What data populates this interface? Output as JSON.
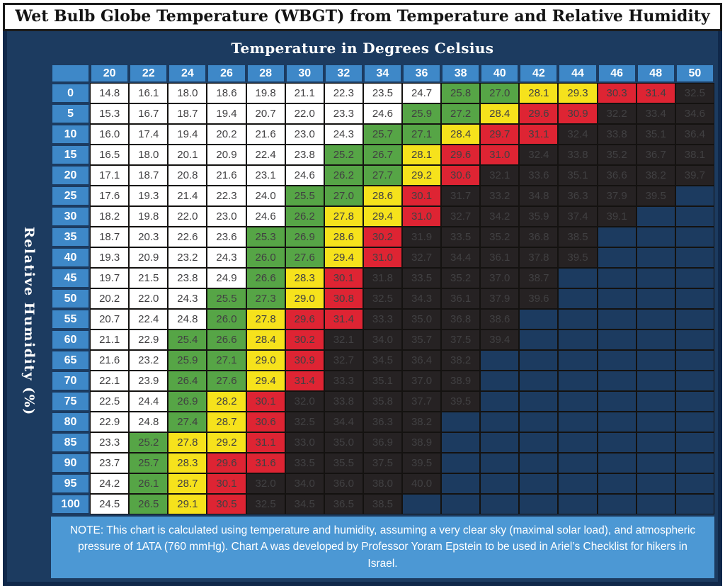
{
  "title": "Wet Bulb Globe Temperature (WBGT) from Temperature and Relative Humidity",
  "colors": {
    "panel_navy": "#1c3b60",
    "panel_border": "#10284a",
    "header_blue": "#3e88c8",
    "note_blue": "#4c98d4",
    "cell_white": "#ffffff",
    "cell_green": "#56a546",
    "cell_yellow": "#f6e21c",
    "cell_red": "#de2433",
    "cell_black": "#262223"
  },
  "chart_data": {
    "type": "heatmap",
    "title": "Wet Bulb Globe Temperature (WBGT) from Temperature and Relative Humidity",
    "x_axis_title": "Temperature in Degrees Celsius",
    "y_axis_title": "Relative Humidity (%)",
    "columns": [
      "20",
      "22",
      "24",
      "26",
      "28",
      "30",
      "32",
      "34",
      "36",
      "38",
      "40",
      "42",
      "44",
      "46",
      "48",
      "50"
    ],
    "color_key": {
      "w": "white",
      "g": "green",
      "y": "yellow",
      "r": "red",
      "k": "black",
      "-": "blank"
    },
    "rows": [
      {
        "rh": "0",
        "values": [
          "14.8",
          "16.1",
          "18.0",
          "18.6",
          "19.8",
          "21.1",
          "22.3",
          "23.5",
          "24.7",
          "25.8",
          "27.0",
          "28.1",
          "29.3",
          "30.3",
          "31.4",
          "32.5"
        ],
        "colors": "wwwwwwwwwggyyrrk"
      },
      {
        "rh": "5",
        "values": [
          "15.3",
          "16.7",
          "18.7",
          "19.4",
          "20.7",
          "22.0",
          "23.3",
          "24.6",
          "25.9",
          "27.2",
          "28.4",
          "29.6",
          "30.9",
          "32.2",
          "33.4",
          "34.6"
        ],
        "colors": "wwwwwwwwggyrrkkk"
      },
      {
        "rh": "10",
        "values": [
          "16.0",
          "17.4",
          "19.4",
          "20.2",
          "21.6",
          "23.0",
          "24.3",
          "25.7",
          "27.1",
          "28.4",
          "29.7",
          "31.1",
          "32.4",
          "33.8",
          "35.1",
          "36.4"
        ],
        "colors": "wwwwwwwggyrrkkkk"
      },
      {
        "rh": "15",
        "values": [
          "16.5",
          "18.0",
          "20.1",
          "20.9",
          "22.4",
          "23.8",
          "25.2",
          "26.7",
          "28.1",
          "29.6",
          "31.0",
          "32.4",
          "33.8",
          "35.2",
          "36.7",
          "38.1"
        ],
        "colors": "wwwwwwggyrrkkkkk"
      },
      {
        "rh": "20",
        "values": [
          "17.1",
          "18.7",
          "20.8",
          "21.6",
          "23.1",
          "24.6",
          "26.2",
          "27.7",
          "29.2",
          "30.6",
          "32.1",
          "33.6",
          "35.1",
          "36.6",
          "38.2",
          "39.7"
        ],
        "colors": "wwwwwwggyrkkkkkk"
      },
      {
        "rh": "25",
        "values": [
          "17.6",
          "19.3",
          "21.4",
          "22.3",
          "24.0",
          "25.5",
          "27.0",
          "28.6",
          "30.1",
          "31.7",
          "33.2",
          "34.8",
          "36.3",
          "37.9",
          "39.5",
          ""
        ],
        "colors": "wwwwwggyrkkkkkk-"
      },
      {
        "rh": "30",
        "values": [
          "18.2",
          "19.8",
          "22.0",
          "23.0",
          "24.6",
          "26.2",
          "27.8",
          "29.4",
          "31.0",
          "32.7",
          "34.2",
          "35.9",
          "37.4",
          "39.1",
          "",
          ""
        ],
        "colors": "wwwwwgyyrkkkkk--"
      },
      {
        "rh": "35",
        "values": [
          "18.7",
          "20.3",
          "22.6",
          "23.6",
          "25.3",
          "26.9",
          "28.6",
          "30.2",
          "31.9",
          "33.5",
          "35.2",
          "36.8",
          "38.5",
          "",
          "",
          ""
        ],
        "colors": "wwwwggyrkkkkk---"
      },
      {
        "rh": "40",
        "values": [
          "19.3",
          "20.9",
          "23.2",
          "24.3",
          "26.0",
          "27.6",
          "29.4",
          "31.0",
          "32.7",
          "34.4",
          "36.1",
          "37.8",
          "39.5",
          "",
          "",
          ""
        ],
        "colors": "wwwwggyrkkkkk---"
      },
      {
        "rh": "45",
        "values": [
          "19.7",
          "21.5",
          "23.8",
          "24.9",
          "26.6",
          "28.3",
          "30.1",
          "31.8",
          "33.5",
          "35.2",
          "37.0",
          "38.7",
          "",
          "",
          "",
          ""
        ],
        "colors": "wwwwgyrkkkkk----"
      },
      {
        "rh": "50",
        "values": [
          "20.2",
          "22.0",
          "24.3",
          "25.5",
          "27.3",
          "29.0",
          "30.8",
          "32.5",
          "34.3",
          "36.1",
          "37.9",
          "39.6",
          "",
          "",
          "",
          ""
        ],
        "colors": "wwwggyrkkkkk----"
      },
      {
        "rh": "55",
        "values": [
          "20.7",
          "22.4",
          "24.8",
          "26.0",
          "27.8",
          "29.6",
          "31.4",
          "33.3",
          "35.0",
          "36.8",
          "38.6",
          "",
          "",
          "",
          "",
          ""
        ],
        "colors": "wwwgyrrkkkk-----"
      },
      {
        "rh": "60",
        "values": [
          "21.1",
          "22.9",
          "25.4",
          "26.6",
          "28.4",
          "30.2",
          "32.1",
          "34.0",
          "35.7",
          "37.5",
          "39.4",
          "",
          "",
          "",
          "",
          ""
        ],
        "colors": "wwggyrkkkkk-----"
      },
      {
        "rh": "65",
        "values": [
          "21.6",
          "23.2",
          "25.9",
          "27.1",
          "29.0",
          "30.9",
          "32.7",
          "34.5",
          "36.4",
          "38.2",
          "",
          "",
          "",
          "",
          "",
          ""
        ],
        "colors": "wwggyrkkkk------"
      },
      {
        "rh": "70",
        "values": [
          "22.1",
          "23.9",
          "26.4",
          "27.6",
          "29.4",
          "31.4",
          "33.3",
          "35.1",
          "37.0",
          "38.9",
          "",
          "",
          "",
          "",
          "",
          ""
        ],
        "colors": "wwggyrkkkk------"
      },
      {
        "rh": "75",
        "values": [
          "22.5",
          "24.4",
          "26.9",
          "28.2",
          "30.1",
          "32.0",
          "33.8",
          "35.8",
          "37.7",
          "39.5",
          "",
          "",
          "",
          "",
          "",
          ""
        ],
        "colors": "wwgyrkkkkk------"
      },
      {
        "rh": "80",
        "values": [
          "22.9",
          "24.8",
          "27.4",
          "28.7",
          "30.6",
          "32.5",
          "34.4",
          "36.3",
          "38.2",
          "",
          "",
          "",
          "",
          "",
          "",
          ""
        ],
        "colors": "wwgyrkkkk-------"
      },
      {
        "rh": "85",
        "values": [
          "23.3",
          "25.2",
          "27.8",
          "29.2",
          "31.1",
          "33.0",
          "35.0",
          "36.9",
          "38.9",
          "",
          "",
          "",
          "",
          "",
          "",
          ""
        ],
        "colors": "wgyyrkkkk-------"
      },
      {
        "rh": "90",
        "values": [
          "23.7",
          "25.7",
          "28.3",
          "29.6",
          "31.6",
          "33.5",
          "35.5",
          "37.5",
          "39.5",
          "",
          "",
          "",
          "",
          "",
          "",
          ""
        ],
        "colors": "wgyrrkkkk-------"
      },
      {
        "rh": "95",
        "values": [
          "24.2",
          "26.1",
          "28.7",
          "30.1",
          "32.0",
          "34.0",
          "36.0",
          "38.0",
          "40.0",
          "",
          "",
          "",
          "",
          "",
          "",
          ""
        ],
        "colors": "wgyrkkkkk-------"
      },
      {
        "rh": "100",
        "values": [
          "24.5",
          "26.5",
          "29.1",
          "30.5",
          "32.5",
          "34.5",
          "36.5",
          "38.5",
          "",
          "",
          "",
          "",
          "",
          "",
          "",
          ""
        ],
        "colors": "wgyrkkkk--------"
      }
    ],
    "note": "NOTE: This chart is calculated using temperature and humidity, assuming a very clear sky (maximal solar load), and atmospheric pressure of 1ATA (760 mmHg). Chart A was developed by Professor Yoram Epstein to be used in Ariel’s Checklist for hikers in Israel."
  }
}
